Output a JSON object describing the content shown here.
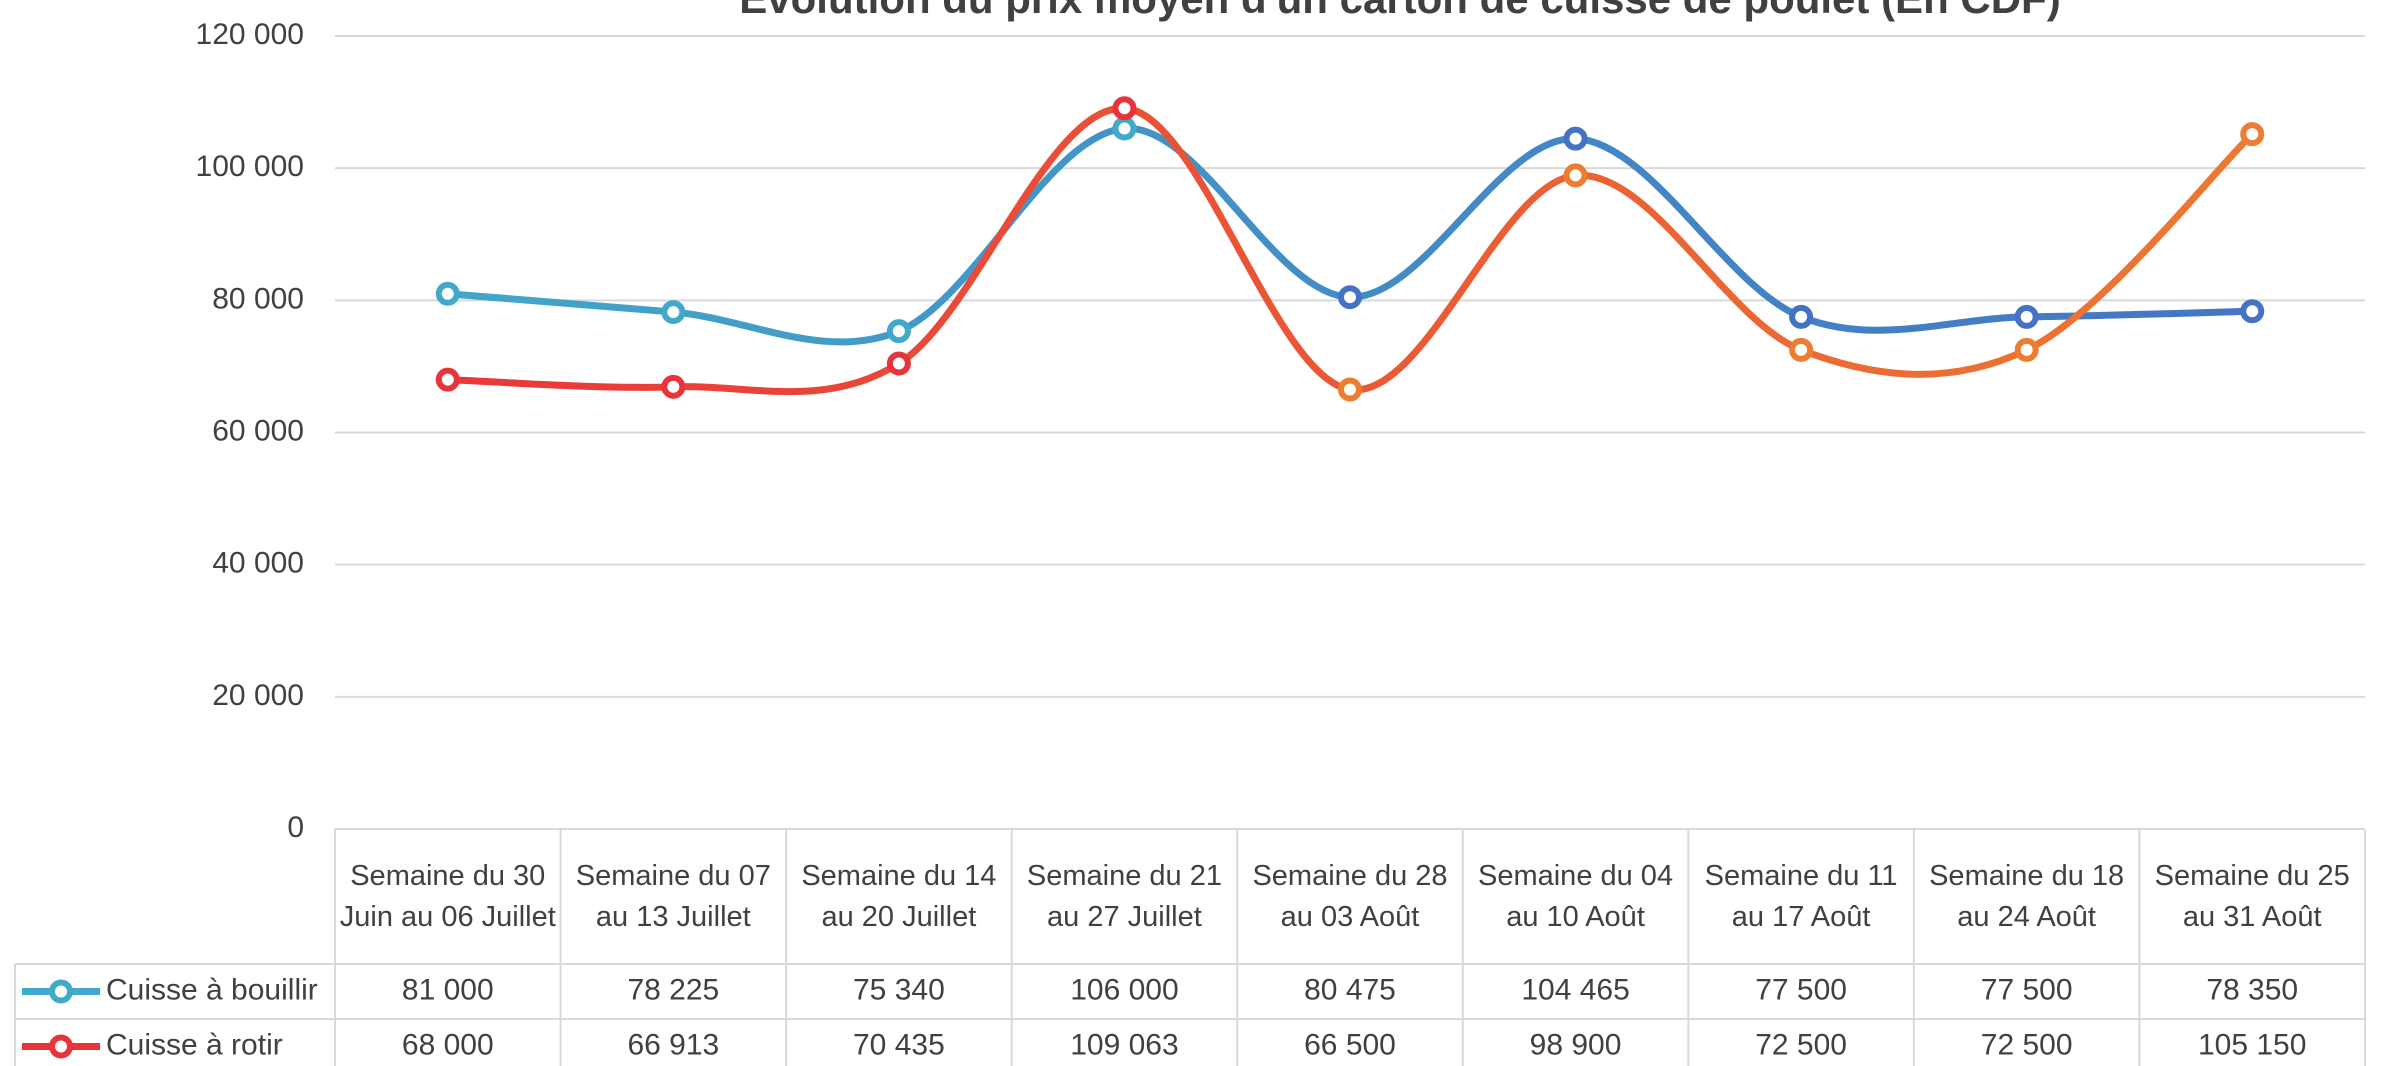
{
  "chart_data": {
    "type": "line",
    "title": "Évolution du prix moyen d'un carton de cuisse de poulet (En CDF)",
    "categories": [
      "Semaine du 30 Juin au 06 Juillet",
      "Semaine du 07 au 13 Juillet",
      "Semaine du 14 au 20 Juillet",
      "Semaine du 21 au 27 Juillet",
      "Semaine du 28 au 03 Août",
      "Semaine du 04 au 10 Août",
      "Semaine du 11 au 17 Août",
      "Semaine du 18 au 24 Août",
      "Semaine du 25 au 31 Août"
    ],
    "series": [
      {
        "name": "Cuisse à bouillir",
        "color": "#41a9c9",
        "gradient_to": "#4472c4",
        "values": [
          81000,
          78225,
          75340,
          106000,
          80475,
          104465,
          77500,
          77500,
          78350
        ],
        "value_labels": [
          "81 000",
          "78 225",
          "75 340",
          "106 000",
          "80 475",
          "104 465",
          "77 500",
          "77 500",
          "78 350"
        ]
      },
      {
        "name": "Cuisse à rotir",
        "color": "#e8333b",
        "gradient_to": "#ed7d31",
        "values": [
          68000,
          66913,
          70435,
          109063,
          66500,
          98900,
          72500,
          72500,
          105150
        ],
        "value_labels": [
          "68 000",
          "66 913",
          "70 435",
          "109 063",
          "66 500",
          "98 900",
          "72 500",
          "72 500",
          "105 150"
        ]
      }
    ],
    "ylim": [
      0,
      120000
    ],
    "yticks": [
      0,
      {
        "value": 20000,
        "label": "20 000"
      },
      {
        "value": 40000,
        "label": "40 000"
      },
      {
        "value": 60000,
        "label": "60 000"
      },
      {
        "value": 80000,
        "label": "80 000"
      },
      {
        "value": 100000,
        "label": "100 000"
      },
      {
        "value": 120000,
        "label": "120 000"
      }
    ],
    "grid": true,
    "smooth": true,
    "data_table": true
  }
}
